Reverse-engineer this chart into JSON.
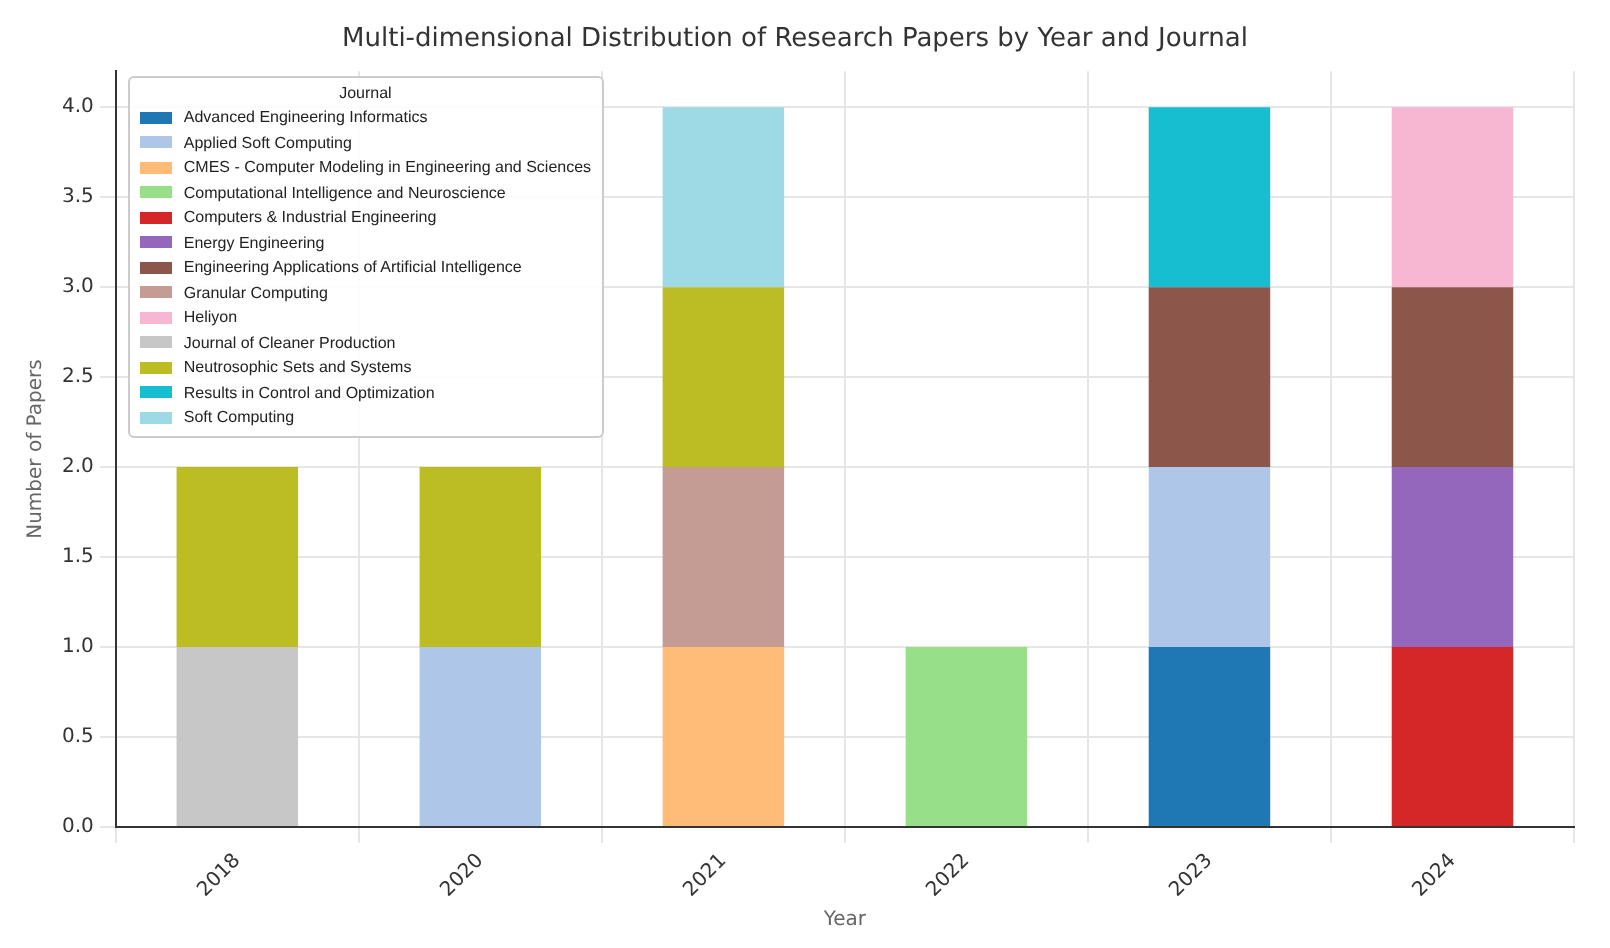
{
  "chart_data": {
    "type": "bar",
    "title": "Multi-dimensional Distribution of Research Papers by Year and Journal",
    "xlabel": "Year",
    "ylabel": "Number of Papers",
    "legend_title": "Journal",
    "categories": [
      "2018",
      "2020",
      "2021",
      "2022",
      "2023",
      "2024"
    ],
    "stacked": true,
    "grid": true,
    "legend": "top left",
    "ylim": [
      0,
      4.2
    ],
    "yticks": [
      {
        "value": 0,
        "label": "0.0"
      },
      {
        "value": 0.5,
        "label": "0.5"
      },
      {
        "value": 1,
        "label": "1.0"
      },
      {
        "value": 1.5,
        "label": "1.5"
      },
      {
        "value": 2,
        "label": "2.0"
      },
      {
        "value": 2.5,
        "label": "2.5"
      },
      {
        "value": 3,
        "label": "3.0"
      },
      {
        "value": 3.5,
        "label": "3.5"
      },
      {
        "value": 4,
        "label": "4.0"
      }
    ],
    "series": [
      {
        "name": "Advanced Engineering Informatics",
        "color": "#1f77b4",
        "values": [
          0,
          0,
          0,
          0,
          1,
          0
        ]
      },
      {
        "name": "Applied Soft Computing",
        "color": "#aec7e8",
        "values": [
          0,
          1,
          0,
          0,
          1,
          0
        ]
      },
      {
        "name": "CMES - Computer Modeling in Engineering and Sciences",
        "color": "#ffbb78",
        "values": [
          0,
          0,
          1,
          0,
          0,
          0
        ]
      },
      {
        "name": "Computational Intelligence and Neuroscience",
        "color": "#98df8a",
        "values": [
          0,
          0,
          0,
          1,
          0,
          0
        ]
      },
      {
        "name": "Computers & Industrial Engineering",
        "color": "#d62728",
        "values": [
          0,
          0,
          0,
          0,
          0,
          1
        ]
      },
      {
        "name": "Energy Engineering",
        "color": "#9467bd",
        "values": [
          0,
          0,
          0,
          0,
          0,
          1
        ]
      },
      {
        "name": "Engineering Applications of Artificial Intelligence",
        "color": "#8c564b",
        "values": [
          0,
          0,
          0,
          0,
          1,
          1
        ]
      },
      {
        "name": "Granular Computing",
        "color": "#c49c94",
        "values": [
          0,
          0,
          1,
          0,
          0,
          0
        ]
      },
      {
        "name": "Heliyon",
        "color": "#f7b6d2",
        "values": [
          0,
          0,
          0,
          0,
          0,
          1
        ]
      },
      {
        "name": "Journal of Cleaner Production",
        "color": "#c7c7c7",
        "values": [
          1,
          0,
          0,
          0,
          0,
          0
        ]
      },
      {
        "name": "Neutrosophic Sets and Systems",
        "color": "#bcbd22",
        "values": [
          1,
          1,
          1,
          0,
          0,
          0
        ]
      },
      {
        "name": "Results in Control and Optimization",
        "color": "#17becf",
        "values": [
          0,
          0,
          0,
          0,
          1,
          0
        ]
      },
      {
        "name": "Soft Computing",
        "color": "#9edae5",
        "values": [
          0,
          0,
          1,
          0,
          0,
          0
        ]
      }
    ]
  }
}
